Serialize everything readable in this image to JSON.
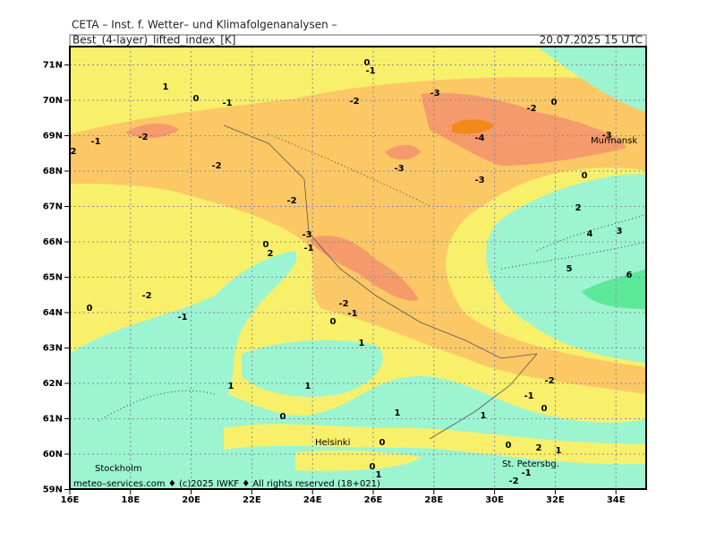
{
  "header": {
    "source": "CETA – Inst. f. Wetter– und Klimafolgenanalysen –",
    "field": "Best_(4-layer)_lifted_index_[K]",
    "valid": "20.07.2025 15 UTC"
  },
  "map": {
    "lat_labels": [
      "71N",
      "70N",
      "69N",
      "68N",
      "67N",
      "66N",
      "65N",
      "64N",
      "63N",
      "62N",
      "61N",
      "60N",
      "59N"
    ],
    "lon_labels": [
      "16E",
      "18E",
      "20E",
      "22E",
      "24E",
      "26E",
      "28E",
      "30E",
      "32E",
      "34E"
    ],
    "places": [
      "Murmansk",
      "Helsinki",
      "Stockholm",
      "St. Petersbg."
    ],
    "contour_labels": [
      "0",
      "-1",
      "-3",
      "-2",
      "-1",
      "0",
      "1",
      "-2",
      "0",
      "-2",
      "-1",
      "2",
      "-4",
      "-3",
      "-3",
      "-2",
      "0",
      "-3",
      "-2",
      "2",
      "4",
      "3",
      "-3",
      "0",
      "2",
      "-1",
      "5",
      "6",
      "-2",
      "0",
      "-2",
      "-1",
      "-1",
      "0",
      "1",
      "-2",
      "1",
      "1",
      "-1",
      "0",
      "0",
      "1",
      "1",
      "0",
      "0",
      "2",
      "1",
      "0",
      "1",
      "-1",
      "-2"
    ]
  },
  "footer": "meteo–services.com ♦ (c)2025 IWKF ♦ All rights reserved (18+021)"
}
